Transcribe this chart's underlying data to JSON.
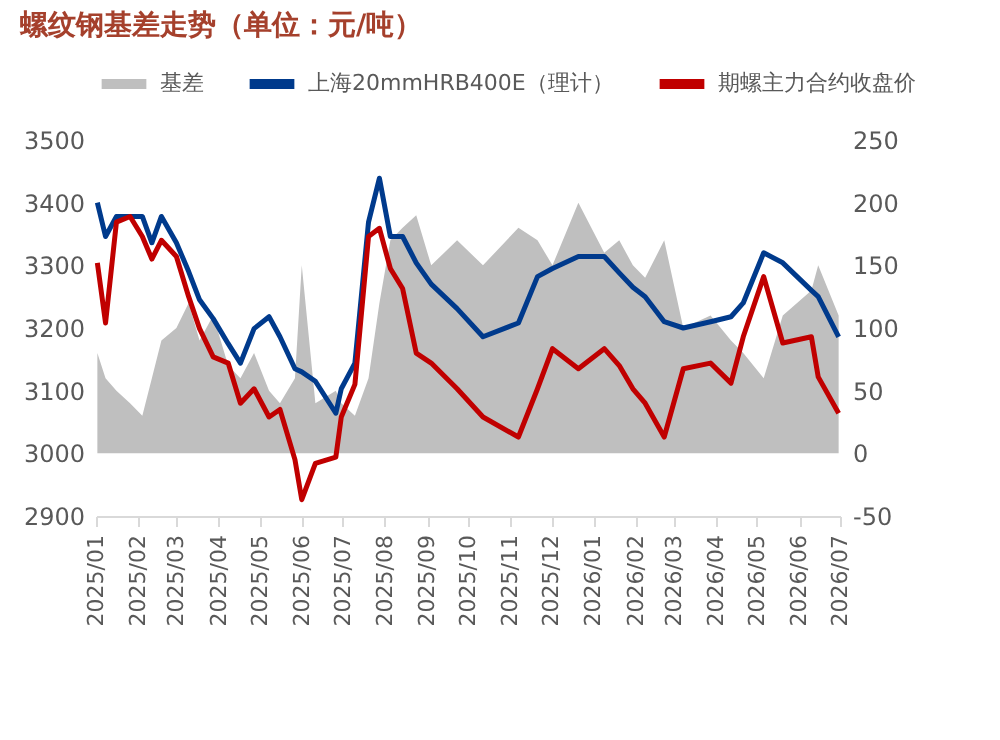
{
  "chart_data": {
    "type": "line",
    "title": "螺纹钢基差走势（单位：元/吨）",
    "x": [
      "2025-01-02",
      "2025-01-08",
      "2025-01-16",
      "2025-01-26",
      "2025-02-04",
      "2025-02-11",
      "2025-02-18",
      "2025-03-01",
      "2025-03-10",
      "2025-03-18",
      "2025-03-28",
      "2025-04-08",
      "2025-04-17",
      "2025-04-27",
      "2025-05-08",
      "2025-05-16",
      "2025-05-27",
      "2025-06-01",
      "2025-06-11",
      "2025-06-26",
      "2025-06-30",
      "2025-07-10",
      "2025-07-20",
      "2025-07-28",
      "2025-08-05",
      "2025-08-14",
      "2025-08-24",
      "2025-09-04",
      "2025-09-23",
      "2025-10-12",
      "2025-11-07",
      "2025-11-21",
      "2025-12-02",
      "2025-12-21",
      "2026-01-09",
      "2026-01-20",
      "2026-01-30",
      "2026-02-08",
      "2026-02-22",
      "2026-03-08",
      "2026-03-28",
      "2026-04-12",
      "2026-04-21",
      "2026-05-06",
      "2026-05-20",
      "2026-06-10",
      "2026-06-15",
      "2026-06-30"
    ],
    "series": [
      {
        "name": "基差",
        "type": "area",
        "axis": "y2",
        "color": "#bfbfbf",
        "values": [
          80,
          60,
          50,
          40,
          30,
          60,
          90,
          100,
          120,
          90,
          110,
          70,
          60,
          80,
          50,
          40,
          60,
          150,
          40,
          50,
          40,
          30,
          60,
          120,
          170,
          180,
          190,
          150,
          170,
          150,
          180,
          170,
          150,
          200,
          160,
          170,
          150,
          140,
          170,
          100,
          110,
          90,
          80,
          60,
          110,
          130,
          150,
          110
        ]
      },
      {
        "name": "上海20mmHRB400E（理计）",
        "color": "#003a8c",
        "values": [
          3400,
          3346,
          3378,
          3378,
          3378,
          3336,
          3378,
          3336,
          3290,
          3245,
          3215,
          3175,
          3144,
          3199,
          3218,
          3186,
          3135,
          3130,
          3115,
          3064,
          3103,
          3144,
          3369,
          3439,
          3346,
          3346,
          3304,
          3270,
          3231,
          3186,
          3208,
          3282,
          3295,
          3314,
          3314,
          3288,
          3265,
          3250,
          3210,
          3200,
          3210,
          3218,
          3240,
          3320,
          3304,
          3260,
          3250,
          3186
        ]
      },
      {
        "name": "期螺主力合约收盘价",
        "color": "#c00000",
        "values": [
          3304,
          3208,
          3369,
          3378,
          3346,
          3310,
          3340,
          3314,
          3250,
          3199,
          3154,
          3144,
          3080,
          3103,
          3058,
          3070,
          2990,
          2926,
          2984,
          2994,
          3058,
          3110,
          3346,
          3359,
          3295,
          3263,
          3160,
          3144,
          3103,
          3058,
          3026,
          3103,
          3167,
          3135,
          3167,
          3140,
          3103,
          3080,
          3026,
          3135,
          3144,
          3112,
          3186,
          3282,
          3176,
          3186,
          3122,
          3064
        ]
      }
    ],
    "xlim": [
      "2025-01",
      "2026-07"
    ],
    "xticks": [
      {
        "value": "2025-01",
        "label": "2025/01"
      },
      {
        "value": "2025-02",
        "label": "2025/02"
      },
      {
        "value": "2025-03",
        "label": "2025/03"
      },
      {
        "value": "2025-04",
        "label": "2025/04"
      },
      {
        "value": "2025-05",
        "label": "2025/05"
      },
      {
        "value": "2025-06",
        "label": "2025/06"
      },
      {
        "value": "2025-07",
        "label": "2025/07"
      },
      {
        "value": "2025-08",
        "label": "2025/08"
      },
      {
        "value": "2025-09",
        "label": "2025/09"
      },
      {
        "value": "2025-10",
        "label": "2025/10"
      },
      {
        "value": "2025-11",
        "label": "2025/11"
      },
      {
        "value": "2025-12",
        "label": "2025/12"
      },
      {
        "value": "2026-01",
        "label": "2026/01"
      },
      {
        "value": "2026-02",
        "label": "2026/02"
      },
      {
        "value": "2026-03",
        "label": "2026/03"
      },
      {
        "value": "2026-04",
        "label": "2026/04"
      },
      {
        "value": "2026-05",
        "label": "2026/05"
      },
      {
        "value": "2026-06",
        "label": "2026/06"
      },
      {
        "value": "2026-07",
        "label": "2026/07"
      }
    ],
    "ylim": [
      2900,
      3500
    ],
    "yticks": [
      2900,
      3000,
      3100,
      3200,
      3300,
      3400,
      3500
    ],
    "y2lim": [
      -50,
      250
    ],
    "y2ticks": [
      -50,
      0,
      50,
      100,
      150,
      200,
      250
    ],
    "legend": "top",
    "grid": false
  }
}
